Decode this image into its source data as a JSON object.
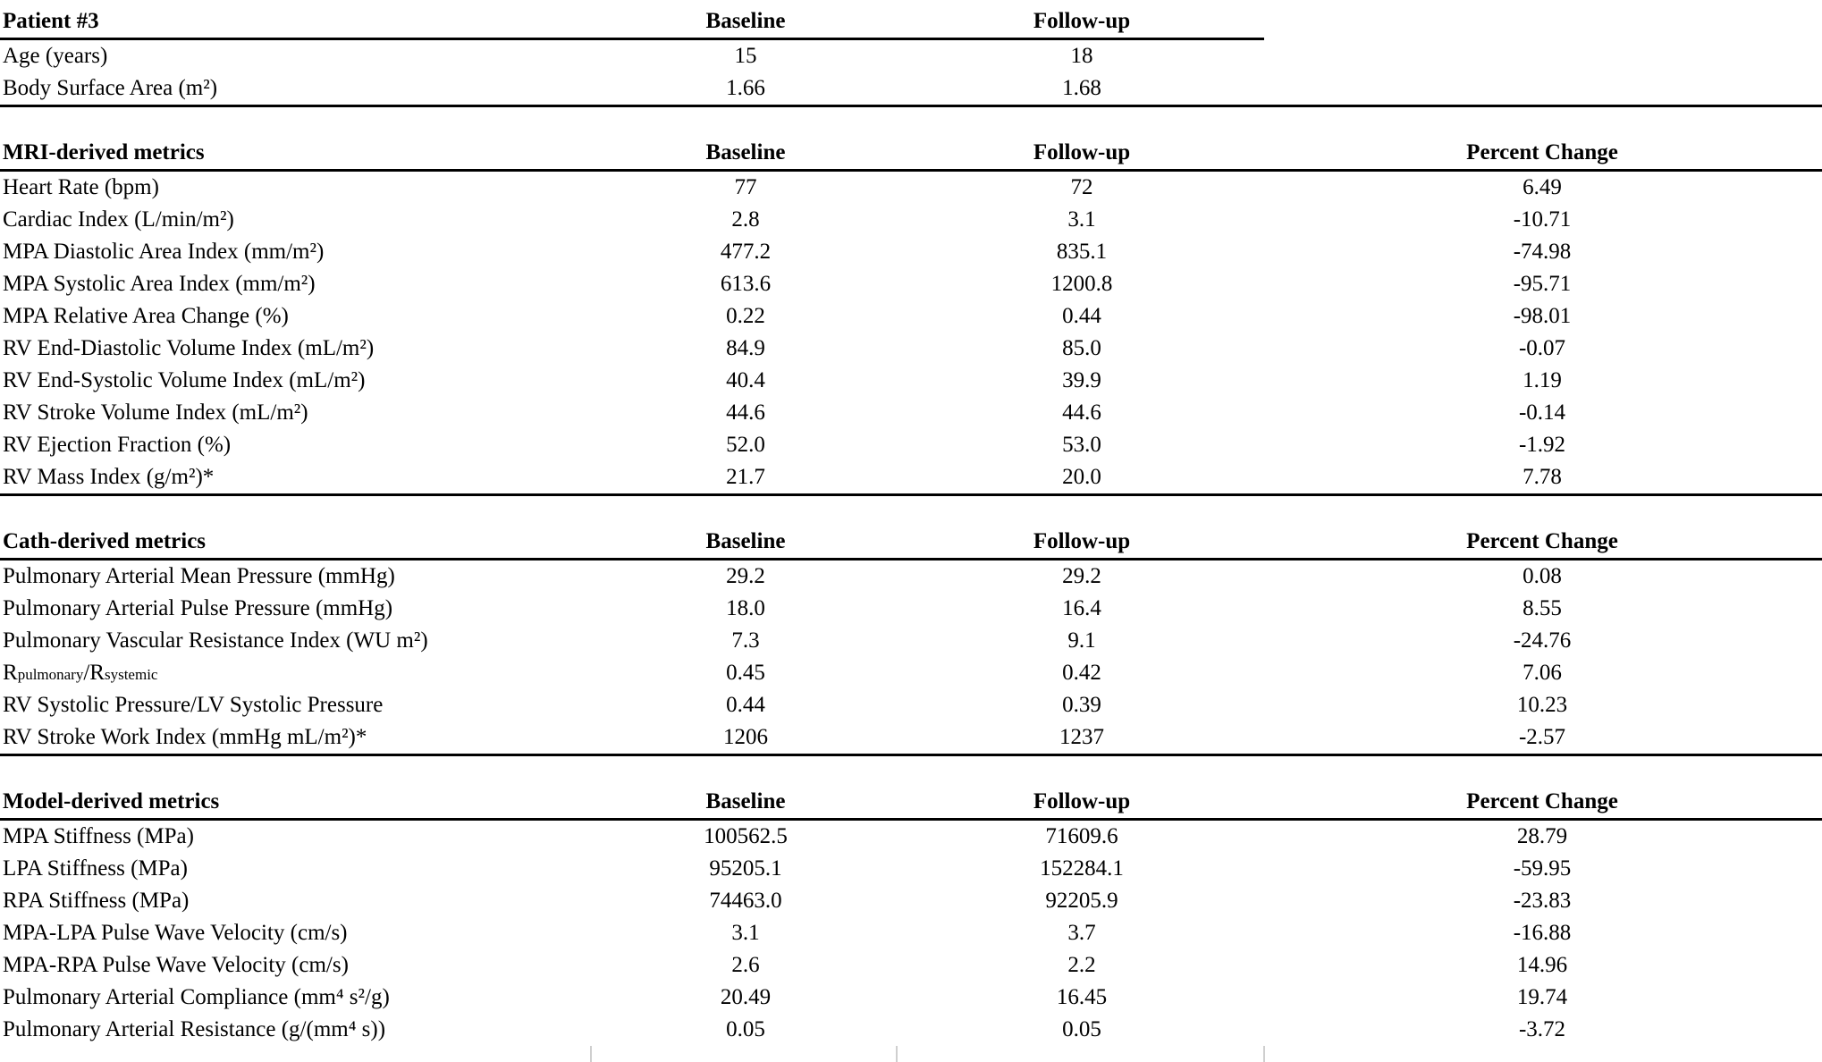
{
  "colors": {
    "text": "#000000",
    "background": "#ffffff",
    "rule": "#000000",
    "gridline_mark": "#cfcfcf"
  },
  "tables": [
    {
      "title": "Patient #3",
      "col_baseline": "Baseline",
      "col_followup": "Follow-up",
      "rows": [
        {
          "label": "Age (years)",
          "baseline": "15",
          "followup": "18"
        },
        {
          "label": "Body Surface Area (m²)",
          "baseline": "1.66",
          "followup": "1.68"
        }
      ]
    },
    {
      "title": "MRI-derived metrics",
      "col_baseline": "Baseline",
      "col_followup": "Follow-up",
      "col_percent": "Percent Change",
      "rows": [
        {
          "label": "Heart Rate (bpm)",
          "baseline": "77",
          "followup": "72",
          "percent": "6.49"
        },
        {
          "label": "Cardiac Index (L/min/m²)",
          "baseline": "2.8",
          "followup": "3.1",
          "percent": "-10.71"
        },
        {
          "label": "MPA Diastolic Area Index (mm/m²)",
          "baseline": "477.2",
          "followup": "835.1",
          "percent": "-74.98"
        },
        {
          "label": "MPA Systolic Area Index (mm/m²)",
          "baseline": "613.6",
          "followup": "1200.8",
          "percent": "-95.71"
        },
        {
          "label": "MPA Relative Area Change (%)",
          "baseline": "0.22",
          "followup": "0.44",
          "percent": "-98.01"
        },
        {
          "label": "RV End-Diastolic Volume Index (mL/m²)",
          "baseline": "84.9",
          "followup": "85.0",
          "percent": "-0.07"
        },
        {
          "label": "RV End-Systolic Volume Index (mL/m²)",
          "baseline": "40.4",
          "followup": "39.9",
          "percent": "1.19"
        },
        {
          "label": "RV Stroke Volume Index (mL/m²)",
          "baseline": "44.6",
          "followup": "44.6",
          "percent": "-0.14"
        },
        {
          "label": "RV Ejection Fraction (%)",
          "baseline": "52.0",
          "followup": "53.0",
          "percent": "-1.92"
        },
        {
          "label": "RV Mass Index (g/m²)*",
          "baseline": "21.7",
          "followup": "20.0",
          "percent": "7.78"
        }
      ]
    },
    {
      "title": "Cath-derived metrics",
      "col_baseline": "Baseline",
      "col_followup": "Follow-up",
      "col_percent": "Percent Change",
      "rows": [
        {
          "label": "Pulmonary Arterial Mean Pressure (mmHg)",
          "baseline": "29.2",
          "followup": "29.2",
          "percent": "0.08"
        },
        {
          "label": "Pulmonary Arterial Pulse Pressure (mmHg)",
          "baseline": "18.0",
          "followup": "16.4",
          "percent": "8.55"
        },
        {
          "label": "Pulmonary Vascular Resistance Index (WU m²)",
          "baseline": "7.3",
          "followup": "9.1",
          "percent": "-24.76"
        },
        {
          "label_segments": [
            {
              "t": "R"
            },
            {
              "t": "pulmonary",
              "sub": true
            },
            {
              "t": "/R"
            },
            {
              "t": "systemic",
              "sub": true
            }
          ],
          "baseline": "0.45",
          "followup": "0.42",
          "percent": "7.06"
        },
        {
          "label": "RV Systolic Pressure/LV Systolic Pressure",
          "baseline": "0.44",
          "followup": "0.39",
          "percent": "10.23"
        },
        {
          "label": "RV Stroke Work Index (mmHg mL/m²)*",
          "baseline": "1206",
          "followup": "1237",
          "percent": "-2.57"
        }
      ]
    },
    {
      "title": "Model-derived metrics",
      "col_baseline": "Baseline",
      "col_followup": "Follow-up",
      "col_percent": "Percent Change",
      "rows": [
        {
          "label": "MPA Stiffness (MPa)",
          "baseline": "100562.5",
          "followup": "71609.6",
          "percent": "28.79"
        },
        {
          "label": "LPA Stiffness (MPa)",
          "baseline": "95205.1",
          "followup": "152284.1",
          "percent": "-59.95"
        },
        {
          "label": "RPA Stiffness (MPa)",
          "baseline": "74463.0",
          "followup": "92205.9",
          "percent": "-23.83"
        },
        {
          "label": "MPA-LPA Pulse Wave Velocity (cm/s)",
          "baseline": "3.1",
          "followup": "3.7",
          "percent": "-16.88"
        },
        {
          "label": "MPA-RPA Pulse Wave Velocity (cm/s)",
          "baseline": "2.6",
          "followup": "2.2",
          "percent": "14.96"
        },
        {
          "label": "Pulmonary Arterial Compliance (mm⁴ s²/g)",
          "baseline": "20.49",
          "followup": "16.45",
          "percent": "19.74"
        },
        {
          "label": "Pulmonary Arterial Resistance (g/(mm⁴ s))",
          "baseline": "0.05",
          "followup": "0.05",
          "percent": "-3.72"
        }
      ]
    }
  ]
}
